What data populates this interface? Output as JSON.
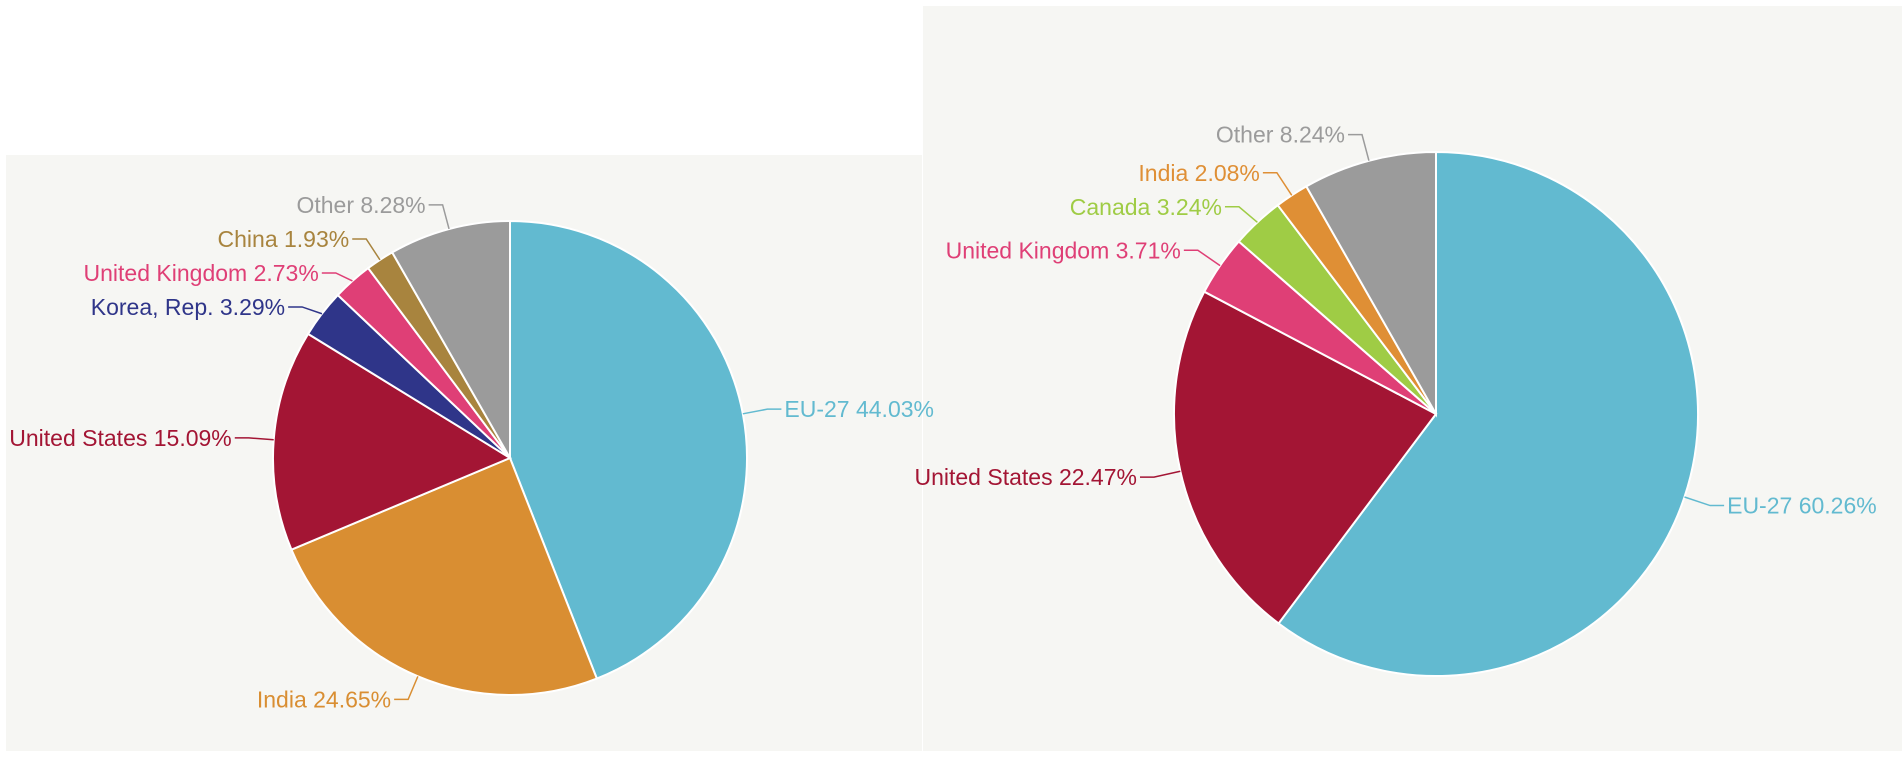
{
  "chart_data": [
    {
      "type": "pie",
      "title": "",
      "slices": [
        {
          "label": "EU-27 44.03%",
          "value": 44.03,
          "color": "#62bad0"
        },
        {
          "label": "India 24.65%",
          "value": 24.65,
          "color": "#d98e32"
        },
        {
          "label": "United States 15.09%",
          "value": 15.09,
          "color": "#a31534"
        },
        {
          "label": "Korea, Rep. 3.29%",
          "value": 3.29,
          "color": "#2f3589"
        },
        {
          "label": "United Kingdom 2.73%",
          "value": 2.73,
          "color": "#df3f76"
        },
        {
          "label": "China 1.93%",
          "value": 1.93,
          "color": "#a8843e"
        },
        {
          "label": "Other 8.28%",
          "value": 8.28,
          "color": "#9b9b9b"
        }
      ]
    },
    {
      "type": "pie",
      "title": "",
      "slices": [
        {
          "label": "EU-27 60.26%",
          "value": 60.26,
          "color": "#62bad0"
        },
        {
          "label": "United States 22.47%",
          "value": 22.47,
          "color": "#a31534"
        },
        {
          "label": "United Kingdom 3.71%",
          "value": 3.71,
          "color": "#df3f76"
        },
        {
          "label": "Canada 3.24%",
          "value": 3.24,
          "color": "#9fcc45"
        },
        {
          "label": "India 2.08%",
          "value": 2.08,
          "color": "#df8f35"
        },
        {
          "label": "Other 8.24%",
          "value": 8.24,
          "color": "#9b9b9b"
        }
      ]
    }
  ]
}
